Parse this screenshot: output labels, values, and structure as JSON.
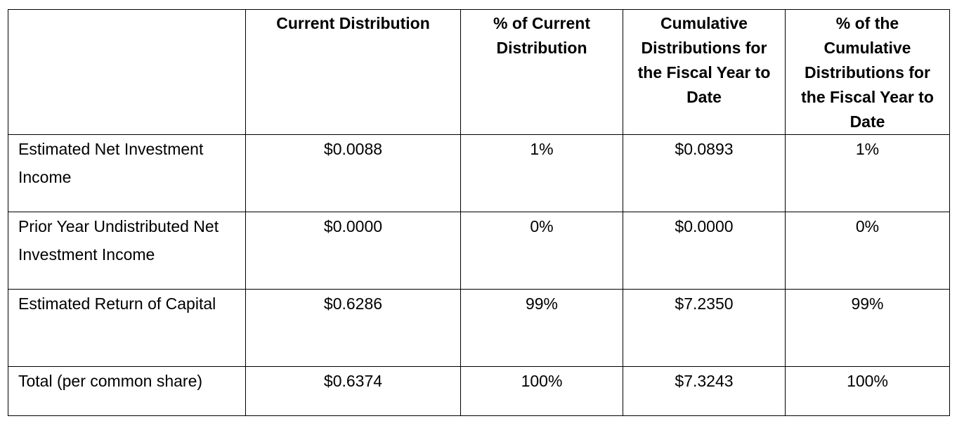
{
  "table": {
    "headers": [
      "",
      "Current Distribution",
      "% of Current Distribution",
      "Cumulative Distributions for the Fiscal Year to Date",
      "% of the Cumulative Distributions for the Fiscal Year to Date"
    ],
    "rows": [
      {
        "label": "Estimated Net Investment Income",
        "current": "$0.0088",
        "pct_current": "1%",
        "cumulative": "$0.0893",
        "pct_cumulative": "1%"
      },
      {
        "label": "Prior Year Undistributed Net Investment Income",
        "current": "$0.0000",
        "pct_current": "0%",
        "cumulative": "$0.0000",
        "pct_cumulative": "0%"
      },
      {
        "label": "Estimated Return of Capital",
        "current": "$0.6286",
        "pct_current": "99%",
        "cumulative": "$7.2350",
        "pct_cumulative": "99%"
      },
      {
        "label": "Total (per common share)",
        "current": "$0.6374",
        "pct_current": "100%",
        "cumulative": "$7.3243",
        "pct_cumulative": "100%"
      }
    ]
  }
}
